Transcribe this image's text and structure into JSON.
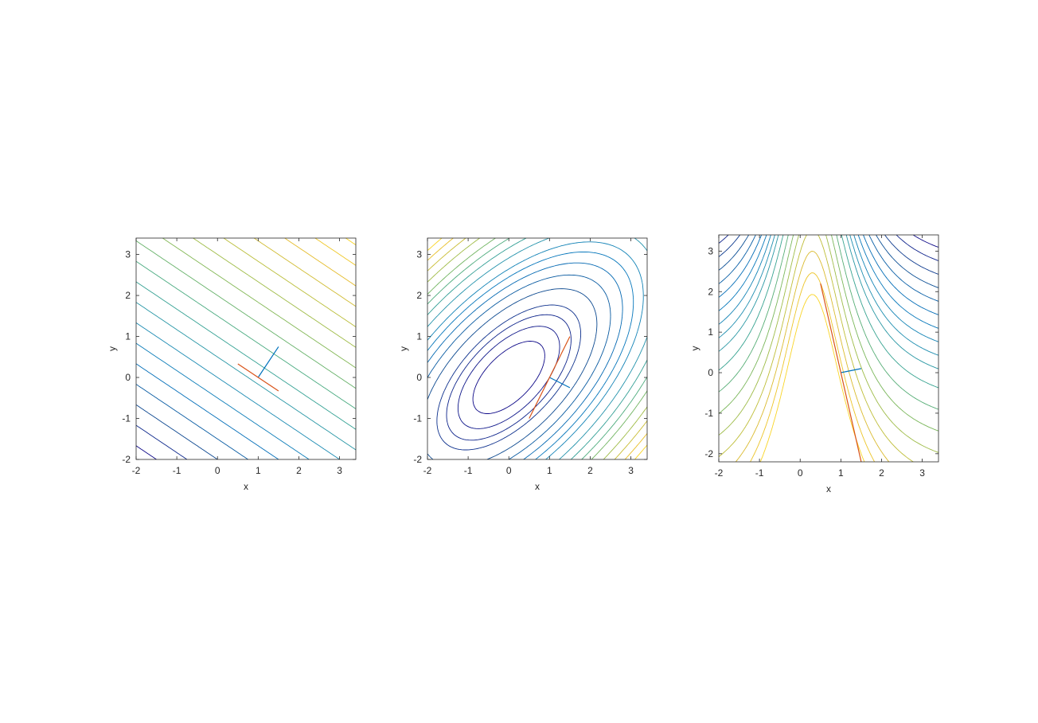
{
  "figure": {
    "background": "#ffffff"
  },
  "colors": {
    "axis": "#262626",
    "gradient_line": "#0072bd",
    "tangent_line": "#d95319",
    "colormap": [
      "#0d0887",
      "#0b4a8f",
      "#0072bd",
      "#1f8fb0",
      "#3aa68a",
      "#77b65a",
      "#b4be3a",
      "#e3b92a",
      "#f9d423"
    ]
  },
  "chart_data": [
    {
      "type": "contour",
      "function": "linear: f = x + 1.5*y",
      "xlabel": "x",
      "ylabel": "y",
      "xlim": [
        -2,
        3.4
      ],
      "ylim": [
        -2,
        3.4
      ],
      "xticks": [
        -2,
        -1,
        0,
        1,
        2,
        3
      ],
      "yticks": [
        -2,
        -1,
        0,
        1,
        2,
        3
      ],
      "contour_levels": [
        -4.5,
        -3.75,
        -3.0,
        -2.25,
        -1.5,
        -0.75,
        0,
        0.75,
        1.5,
        2.25,
        3.0,
        3.75,
        4.5,
        5.25,
        6.0,
        6.75,
        7.5,
        8.25
      ],
      "grid": false,
      "lines": [
        {
          "role": "gradient",
          "color": "#0072bd",
          "x": [
            1.0,
            1.5
          ],
          "y": [
            0.0,
            0.75
          ]
        },
        {
          "role": "tangent",
          "color": "#d95319",
          "x": [
            0.5,
            1.5
          ],
          "y": [
            0.33,
            -0.33
          ]
        }
      ]
    },
    {
      "type": "contour",
      "function": "quadratic: f = x^2 - 1.2*x*y + y^2",
      "xlabel": "x",
      "ylabel": "y",
      "xlim": [
        -2,
        3.4
      ],
      "ylim": [
        -2,
        3.4
      ],
      "xticks": [
        -2,
        -1,
        0,
        1,
        2,
        3
      ],
      "yticks": [
        -2,
        -1,
        0,
        1,
        2,
        3
      ],
      "contour_levels": [
        0.5,
        1,
        1.5,
        2,
        3,
        4,
        5,
        6,
        7,
        8.5,
        10,
        11.5,
        13,
        15,
        17,
        19,
        21
      ],
      "grid": false,
      "lines": [
        {
          "role": "gradient",
          "color": "#0072bd",
          "x": [
            1.0,
            1.5
          ],
          "y": [
            0.0,
            -0.25
          ]
        },
        {
          "role": "tangent",
          "color": "#d95319",
          "x": [
            0.5,
            1.5
          ],
          "y": [
            -1.0,
            1.0
          ]
        }
      ]
    },
    {
      "type": "contour",
      "function": "f = 1 / (1 + (x - 0.3)^2) - 0.15*y",
      "xlabel": "x",
      "ylabel": "y",
      "xlim": [
        -2,
        3.4
      ],
      "ylim": [
        -2.2,
        3.4
      ],
      "xticks": [
        -2,
        -1,
        0,
        1,
        2,
        3
      ],
      "yticks": [
        -2,
        -1,
        0,
        1,
        2,
        3
      ],
      "contour_levels": [
        -0.37,
        -0.32,
        -0.27,
        -0.22,
        -0.17,
        -0.12,
        -0.07,
        -0.02,
        0.03,
        0.08,
        0.15,
        0.23,
        0.31,
        0.39,
        0.47,
        0.55,
        0.63,
        0.71
      ],
      "grid": false,
      "lines": [
        {
          "role": "gradient",
          "color": "#0072bd",
          "x": [
            1.0,
            1.5
          ],
          "y": [
            0.0,
            0.1
          ]
        },
        {
          "role": "tangent",
          "color": "#d95319",
          "x": [
            0.5,
            1.5
          ],
          "y": [
            2.2,
            -2.2
          ]
        }
      ]
    }
  ]
}
